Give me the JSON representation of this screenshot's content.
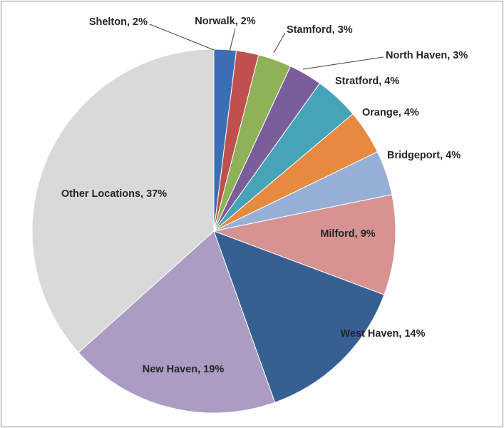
{
  "chart_data": {
    "type": "pie",
    "values": [
      2,
      2,
      3,
      3,
      4,
      4,
      4,
      9,
      14,
      19,
      37
    ],
    "value_labels": [
      "Shelton, 2%",
      "Norwalk, 2%",
      "Stamford, 3%",
      "North Haven, 3%",
      "Stratford, 4%",
      "Orange, 4%",
      "Bridgeport, 4%",
      "Milford, 9%",
      "West Haven, 14%",
      "New Haven, 19%",
      "Other Locations, 37%"
    ],
    "colors": [
      "#3a6fb5",
      "#c0504d",
      "#8fb157",
      "#7a5e9a",
      "#46a3b8",
      "#e58a3e",
      "#96afd6",
      "#d69391",
      "#376092",
      "#aa9cc3",
      "#d9d9d9"
    ]
  }
}
